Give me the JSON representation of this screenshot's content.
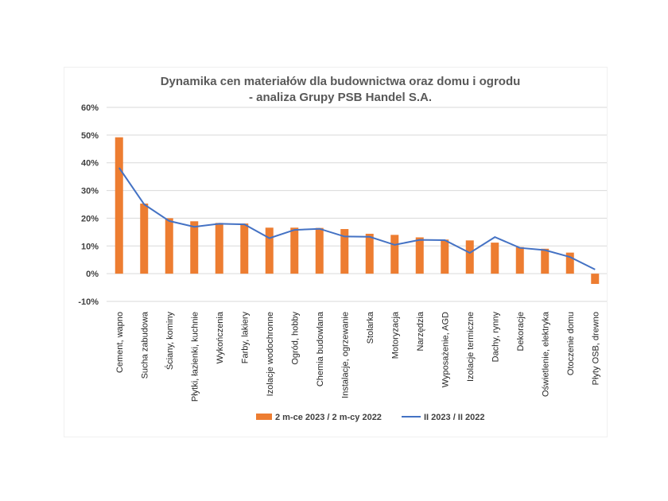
{
  "chart_data": {
    "type": "bar",
    "title_lines": [
      "Dynamika cen materiałów dla budownictwa oraz domu i ogrodu",
      "- analiza Grupy PSB Handel S.A."
    ],
    "categories": [
      "Cement, wapno",
      "Sucha zabudowa",
      "Ściany, kominy",
      "Płytki, łazienki, kuchnie",
      "Wykończenia",
      "Farby, lakiery",
      "Izolacje wodochronne",
      "Ogród, hobby",
      "Chemia budowlana",
      "Instalacje, ogrzewanie",
      "Stolarka",
      "Motoryzacja",
      "Narzędzia",
      "Wyposażenie, AGD",
      "Izolacje termiczne",
      "Dachy, rynny",
      "Dekoracje",
      "Oświetlenie, elektryka",
      "Otoczenie domu",
      "Płyty OSB, drewno"
    ],
    "series": [
      {
        "name": "2 m-ce 2023 / 2 m-cy 2022",
        "type": "bar",
        "color": "#ED7D31",
        "values": [
          49.2,
          25.3,
          20.0,
          18.9,
          18.3,
          18.1,
          16.6,
          16.6,
          16.5,
          16.1,
          14.4,
          14.0,
          13.1,
          12.3,
          12.0,
          11.2,
          9.6,
          9.0,
          7.6,
          -3.7
        ]
      },
      {
        "name": "II 2023 / II 2022",
        "type": "line",
        "color": "#4472C4",
        "values": [
          38.2,
          25.0,
          19.0,
          16.9,
          18.0,
          17.8,
          12.8,
          15.8,
          16.2,
          13.4,
          13.3,
          10.4,
          12.2,
          12.1,
          7.5,
          13.2,
          9.3,
          8.5,
          6.0,
          1.5
        ]
      }
    ],
    "yticks": [
      "60%",
      "50%",
      "40%",
      "30%",
      "20%",
      "10%",
      "0%",
      "-10%"
    ],
    "ylim": [
      -10,
      60
    ],
    "legend_position": "bottom"
  }
}
